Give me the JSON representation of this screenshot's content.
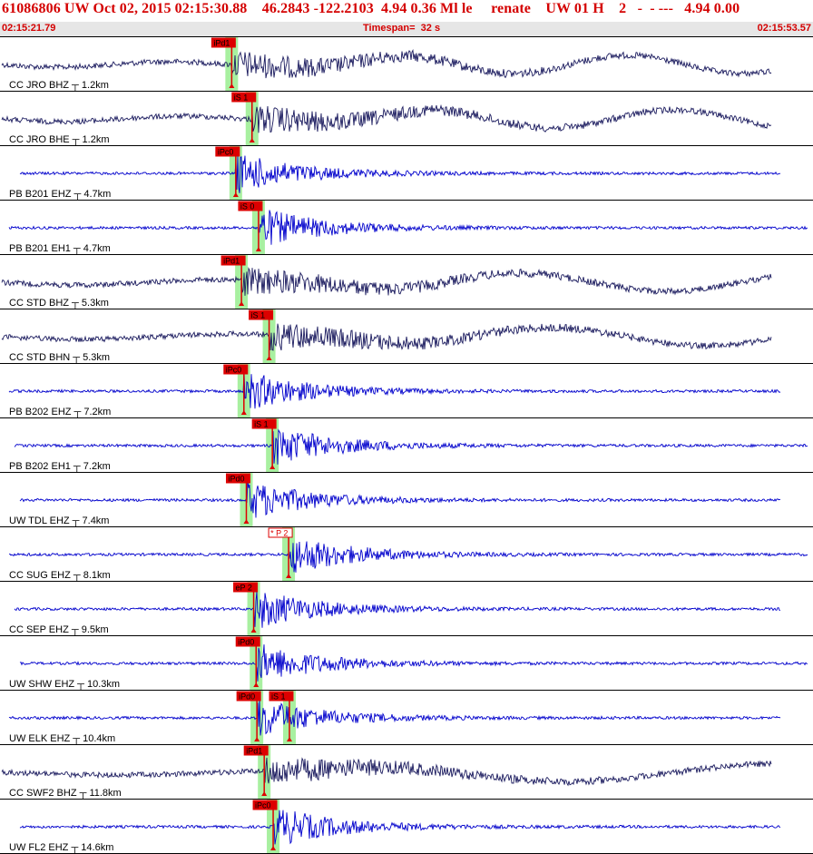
{
  "header": {
    "title": "61086806 UW Oct 02, 2015 02:15:30.88    46.2843 -122.2103  4.94 0.36 Ml le     renate    UW 01 H    2   -  - ---   4.94 0.00",
    "start_time": "02:15:21.79",
    "timespan": "Timespan=  32 s",
    "end_time": "02:15:53.57"
  },
  "colors": {
    "title": "#d40000",
    "broadband_trace": "#1a1a5e",
    "short_period_trace": "#0000cc",
    "pick_fill": "#dd0000",
    "pick_window": "#a8f0a0",
    "background": "#ffffff"
  },
  "channels": [
    {
      "label": "CC JRO BHZ ┬ 1.2km",
      "color": "dark",
      "picks": [
        {
          "text": "iPd1",
          "t": 0.285
        }
      ]
    },
    {
      "label": "CC JRO BHE ┬ 1.2km",
      "color": "dark",
      "picks": [
        {
          "text": "iS 1",
          "t": 0.31
        }
      ]
    },
    {
      "label": "PB B201 EHZ ┬ 4.7km",
      "color": "blue",
      "picks": [
        {
          "text": "iPc0",
          "t": 0.29
        }
      ]
    },
    {
      "label": "PB B201 EH1 ┬ 4.7km",
      "color": "blue",
      "picks": [
        {
          "text": "iS 0",
          "t": 0.318
        }
      ]
    },
    {
      "label": "CC STD BHZ ┬ 5.3km",
      "color": "dark",
      "picks": [
        {
          "text": "iPd1",
          "t": 0.297
        }
      ]
    },
    {
      "label": "CC STD BHN ┬ 5.3km",
      "color": "dark",
      "picks": [
        {
          "text": "iS 1",
          "t": 0.331
        }
      ]
    },
    {
      "label": "PB B202 EHZ ┬ 7.2km",
      "color": "blue",
      "picks": [
        {
          "text": "iPc0",
          "t": 0.3
        }
      ]
    },
    {
      "label": "PB B202 EH1 ┬ 7.2km",
      "color": "blue",
      "picks": [
        {
          "text": "iS 1",
          "t": 0.335
        }
      ]
    },
    {
      "label": "UW TDL EHZ ┬ 7.4km",
      "color": "blue",
      "picks": [
        {
          "text": "iPd0",
          "t": 0.303
        }
      ]
    },
    {
      "label": "CC SUG EHZ ┬ 8.1km",
      "color": "blue",
      "picks": [
        {
          "text": "* P 2",
          "t": 0.355,
          "open": true
        }
      ]
    },
    {
      "label": "CC SEP EHZ ┬ 9.5km",
      "color": "blue",
      "picks": [
        {
          "text": "eP 2",
          "t": 0.312
        }
      ]
    },
    {
      "label": "UW SHW EHZ ┬ 10.3km",
      "color": "blue",
      "picks": [
        {
          "text": "iPd0",
          "t": 0.315
        }
      ]
    },
    {
      "label": "UW ELK EHZ ┬ 10.4km",
      "color": "blue",
      "picks": [
        {
          "text": "iPd0",
          "t": 0.316
        },
        {
          "text": "iS 1",
          "t": 0.356
        }
      ]
    },
    {
      "label": "CC SWF2 BHZ ┬ 11.8km",
      "color": "dark",
      "picks": [
        {
          "text": "iPd1",
          "t": 0.325
        }
      ]
    },
    {
      "label": "UW FL2 EHZ ┬ 14.6km",
      "color": "blue",
      "picks": [
        {
          "text": "iPc0",
          "t": 0.336
        }
      ]
    }
  ]
}
